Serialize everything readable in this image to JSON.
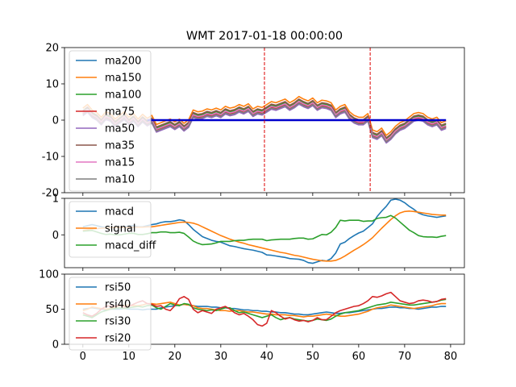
{
  "figure": {
    "title": "WMT 2017-01-18 00:00:00",
    "accent_colors": {
      "blue": "#1f77b4",
      "orange": "#ff7f0e",
      "green": "#2ca02c",
      "red": "#d62728",
      "purple": "#9467bd",
      "brown": "#8c564b",
      "pink": "#e377c2",
      "gray": "#7f7f7f",
      "zero_line": "#0000cc",
      "vline": "#dd0000"
    }
  },
  "chart_data": [
    {
      "id": "ma",
      "type": "line",
      "title": "WMT 2017-01-18 00:00:00",
      "xlim": [
        -4,
        83
      ],
      "ylim": [
        -20,
        20
      ],
      "yticks": [
        -20,
        -10,
        0,
        10,
        20
      ],
      "grid": false,
      "legend_position": "upper-left",
      "hline": {
        "y": 0,
        "x_start": 14,
        "x_end": 79,
        "color": "#0000cc"
      },
      "vlines": [
        39.5,
        62.5
      ],
      "series": [
        {
          "name": "ma200",
          "color": "#1f77b4",
          "offset": -0.3
        },
        {
          "name": "ma150",
          "color": "#ff7f0e",
          "offset": 1.3
        },
        {
          "name": "ma100",
          "color": "#2ca02c",
          "offset": 0.3
        },
        {
          "name": "ma75",
          "color": "#d62728",
          "offset": -0.3
        },
        {
          "name": "ma50",
          "color": "#9467bd",
          "offset": -0.8
        },
        {
          "name": "ma35",
          "color": "#8c564b",
          "offset": 0.6
        },
        {
          "name": "ma15",
          "color": "#e377c2",
          "offset": 0
        },
        {
          "name": "ma10",
          "color": "#7f7f7f",
          "offset": -0.5
        }
      ],
      "x": [
        0,
        1,
        2,
        3,
        4,
        5,
        6,
        7,
        8,
        9,
        10,
        11,
        12,
        13,
        14,
        15,
        16,
        17,
        18,
        19,
        20,
        21,
        22,
        23,
        24,
        25,
        26,
        27,
        28,
        29,
        30,
        31,
        32,
        33,
        34,
        35,
        36,
        37,
        38,
        39,
        40,
        41,
        42,
        43,
        44,
        45,
        46,
        47,
        48,
        49,
        50,
        51,
        52,
        53,
        54,
        55,
        56,
        57,
        58,
        59,
        60,
        61,
        62,
        63,
        64,
        65,
        66,
        67,
        68,
        69,
        70,
        71,
        72,
        73,
        74,
        75,
        76,
        77,
        78,
        79
      ],
      "base": [
        2.0,
        3.0,
        1.5,
        0.8,
        -0.5,
        1.0,
        0.5,
        -1.0,
        0.0,
        1.0,
        -0.5,
        0.5,
        -1.0,
        0.3,
        -0.8,
        0.0,
        -2.5,
        -2.0,
        -1.5,
        -1.0,
        -1.8,
        -1.0,
        -2.2,
        -1.2,
        1.5,
        1.0,
        1.2,
        1.8,
        1.5,
        2.0,
        1.5,
        2.5,
        2.0,
        2.3,
        3.0,
        2.5,
        3.2,
        1.8,
        2.5,
        2.2,
        3.0,
        3.8,
        3.5,
        4.0,
        4.5,
        3.5,
        4.2,
        5.2,
        4.5,
        4.0,
        4.8,
        3.5,
        4.2,
        4.0,
        3.5,
        1.5,
        2.5,
        3.0,
        1.0,
        0.0,
        -0.5,
        -0.5,
        0.5,
        -4.0,
        -4.5,
        -3.5,
        -5.5,
        -4.5,
        -3.0,
        -2.0,
        -1.5,
        -0.5,
        0.5,
        0.8,
        0.5,
        -0.5,
        -1.0,
        -0.5,
        -2.0,
        -1.5
      ]
    },
    {
      "id": "macd",
      "type": "line",
      "xlim": [
        -4,
        83
      ],
      "ylim": [
        -0.9,
        1.0
      ],
      "yticks": [
        0,
        1
      ],
      "grid": false,
      "legend_position": "upper-left",
      "x": [
        0,
        1,
        2,
        3,
        4,
        5,
        6,
        7,
        8,
        9,
        10,
        11,
        12,
        13,
        14,
        15,
        16,
        17,
        18,
        19,
        20,
        21,
        22,
        23,
        24,
        25,
        26,
        27,
        28,
        29,
        30,
        31,
        32,
        33,
        34,
        35,
        36,
        37,
        38,
        39,
        40,
        41,
        42,
        43,
        44,
        45,
        46,
        47,
        48,
        49,
        50,
        51,
        52,
        53,
        54,
        55,
        56,
        57,
        58,
        59,
        60,
        61,
        62,
        63,
        64,
        65,
        66,
        67,
        68,
        69,
        70,
        71,
        72,
        73,
        74,
        75,
        76,
        77,
        78,
        79
      ],
      "series": [
        {
          "name": "macd",
          "color": "#1f77b4",
          "values": [
            0.22,
            0.25,
            0.28,
            0.25,
            0.22,
            0.2,
            0.22,
            0.2,
            0.2,
            0.22,
            0.24,
            0.25,
            0.22,
            0.22,
            0.25,
            0.28,
            0.3,
            0.34,
            0.36,
            0.36,
            0.38,
            0.41,
            0.39,
            0.28,
            0.15,
            0.05,
            -0.05,
            -0.1,
            -0.15,
            -0.18,
            -0.2,
            -0.25,
            -0.3,
            -0.32,
            -0.35,
            -0.38,
            -0.4,
            -0.42,
            -0.45,
            -0.48,
            -0.55,
            -0.56,
            -0.58,
            -0.6,
            -0.62,
            -0.65,
            -0.66,
            -0.67,
            -0.7,
            -0.76,
            -0.78,
            -0.74,
            -0.7,
            -0.72,
            -0.65,
            -0.5,
            -0.25,
            -0.2,
            -0.1,
            -0.02,
            0.05,
            0.1,
            0.2,
            0.3,
            0.5,
            0.65,
            0.78,
            0.95,
            0.98,
            0.95,
            0.88,
            0.78,
            0.7,
            0.6,
            0.55,
            0.52,
            0.5,
            0.48,
            0.5,
            0.52
          ]
        },
        {
          "name": "signal",
          "color": "#ff7f0e",
          "values": [
            0.12,
            0.14,
            0.16,
            0.17,
            0.18,
            0.19,
            0.2,
            0.2,
            0.2,
            0.2,
            0.2,
            0.21,
            0.21,
            0.21,
            0.22,
            0.22,
            0.24,
            0.26,
            0.28,
            0.3,
            0.32,
            0.34,
            0.35,
            0.34,
            0.32,
            0.28,
            0.22,
            0.16,
            0.1,
            0.04,
            -0.02,
            -0.07,
            -0.12,
            -0.16,
            -0.2,
            -0.23,
            -0.27,
            -0.3,
            -0.33,
            -0.36,
            -0.39,
            -0.42,
            -0.45,
            -0.48,
            -0.5,
            -0.53,
            -0.56,
            -0.58,
            -0.61,
            -0.64,
            -0.67,
            -0.69,
            -0.71,
            -0.72,
            -0.72,
            -0.7,
            -0.65,
            -0.58,
            -0.5,
            -0.42,
            -0.35,
            -0.27,
            -0.18,
            -0.08,
            0.05,
            0.18,
            0.3,
            0.42,
            0.52,
            0.6,
            0.64,
            0.65,
            0.64,
            0.62,
            0.6,
            0.58,
            0.56,
            0.55,
            0.54,
            0.54
          ]
        },
        {
          "name": "macd_diff",
          "color": "#2ca02c",
          "values": [
            0.1,
            0.11,
            0.12,
            0.08,
            0.04,
            0.01,
            0.02,
            0.0,
            0.0,
            0.02,
            0.04,
            0.04,
            0.01,
            0.01,
            0.03,
            0.06,
            0.06,
            0.08,
            0.08,
            0.06,
            0.06,
            0.07,
            0.04,
            -0.06,
            -0.17,
            -0.23,
            -0.27,
            -0.26,
            -0.25,
            -0.22,
            -0.18,
            -0.18,
            -0.18,
            -0.16,
            -0.15,
            -0.15,
            -0.13,
            -0.12,
            -0.12,
            -0.12,
            -0.16,
            -0.14,
            -0.13,
            -0.12,
            -0.12,
            -0.12,
            -0.1,
            -0.09,
            -0.09,
            -0.12,
            -0.11,
            -0.05,
            0.01,
            0.0,
            0.07,
            0.2,
            0.4,
            0.38,
            0.4,
            0.4,
            0.4,
            0.37,
            0.38,
            0.38,
            0.45,
            0.47,
            0.48,
            0.53,
            0.46,
            0.35,
            0.24,
            0.13,
            0.06,
            -0.02,
            -0.05,
            -0.06,
            -0.06,
            -0.07,
            -0.04,
            -0.02
          ]
        }
      ]
    },
    {
      "id": "rsi",
      "type": "line",
      "xlim": [
        -4,
        83
      ],
      "ylim": [
        0,
        100
      ],
      "yticks": [
        0,
        50,
        100
      ],
      "xticks": [
        0,
        10,
        20,
        30,
        40,
        50,
        60,
        70,
        80
      ],
      "grid": false,
      "legend_position": "upper-left",
      "x": [
        0,
        1,
        2,
        3,
        4,
        5,
        6,
        7,
        8,
        9,
        10,
        11,
        12,
        13,
        14,
        15,
        16,
        17,
        18,
        19,
        20,
        21,
        22,
        23,
        24,
        25,
        26,
        27,
        28,
        29,
        30,
        31,
        32,
        33,
        34,
        35,
        36,
        37,
        38,
        39,
        40,
        41,
        42,
        43,
        44,
        45,
        46,
        47,
        48,
        49,
        50,
        51,
        52,
        53,
        54,
        55,
        56,
        57,
        58,
        59,
        60,
        61,
        62,
        63,
        64,
        65,
        66,
        67,
        68,
        69,
        70,
        71,
        72,
        73,
        74,
        75,
        76,
        77,
        78,
        79
      ],
      "series": [
        {
          "name": "rsi50",
          "color": "#1f77b4",
          "values": [
            50,
            51,
            52,
            51,
            50,
            49,
            50,
            50,
            50,
            51,
            50,
            50,
            50,
            49,
            50,
            50,
            50,
            52,
            53,
            54,
            55,
            56,
            57,
            56,
            55,
            54,
            54,
            54,
            53,
            53,
            52,
            52,
            51,
            51,
            50,
            49,
            49,
            48,
            48,
            47,
            47,
            46,
            46,
            45,
            45,
            44,
            43,
            43,
            42,
            42,
            43,
            44,
            45,
            46,
            45,
            44,
            44,
            45,
            45,
            46,
            47,
            48,
            49,
            50,
            51,
            51,
            52,
            53,
            53,
            52,
            52,
            51,
            51,
            50,
            51,
            52,
            53,
            53,
            54,
            54
          ]
        },
        {
          "name": "rsi40",
          "color": "#ff7f0e",
          "values": [
            48,
            50,
            53,
            52,
            51,
            50,
            51,
            53,
            55,
            55,
            56,
            55,
            55,
            56,
            58,
            58,
            57,
            58,
            59,
            60,
            58,
            56,
            57,
            56,
            55,
            52,
            51,
            51,
            50,
            49,
            48,
            48,
            47,
            48,
            48,
            47,
            46,
            46,
            45,
            44,
            43,
            43,
            42,
            42,
            42,
            41,
            41,
            40,
            39,
            40,
            40,
            41,
            42,
            43,
            42,
            41,
            40,
            40,
            41,
            42,
            43,
            45,
            47,
            50,
            52,
            53,
            54,
            56,
            55,
            54,
            53,
            52,
            51,
            52,
            53,
            54,
            55,
            57,
            58,
            58
          ]
        },
        {
          "name": "rsi30",
          "color": "#2ca02c",
          "values": [
            42,
            40,
            38,
            42,
            46,
            48,
            50,
            51,
            52,
            51,
            52,
            53,
            54,
            53,
            55,
            56,
            52,
            50,
            54,
            58,
            56,
            55,
            58,
            57,
            52,
            50,
            49,
            48,
            49,
            48,
            50,
            52,
            52,
            48,
            45,
            46,
            44,
            42,
            40,
            38,
            40,
            42,
            38,
            35,
            37,
            38,
            36,
            35,
            34,
            33,
            34,
            36,
            35,
            34,
            36,
            40,
            43,
            45,
            46,
            47,
            48,
            50,
            52,
            54,
            56,
            57,
            58,
            60,
            59,
            58,
            57,
            56,
            56,
            57,
            58,
            59,
            60,
            61,
            63,
            64
          ]
        },
        {
          "name": "rsi20",
          "color": "#d62728",
          "values": [
            45,
            42,
            40,
            44,
            50,
            54,
            55,
            54,
            56,
            53,
            54,
            57,
            60,
            62,
            58,
            57,
            54,
            55,
            50,
            48,
            55,
            65,
            68,
            64,
            50,
            45,
            48,
            46,
            44,
            50,
            52,
            54,
            50,
            45,
            42,
            44,
            40,
            35,
            28,
            26,
            30,
            48,
            45,
            40,
            36,
            38,
            35,
            33,
            34,
            32,
            34,
            38,
            35,
            35,
            40,
            45,
            48,
            50,
            52,
            54,
            55,
            58,
            62,
            68,
            67,
            69,
            72,
            74,
            68,
            62,
            60,
            58,
            59,
            62,
            63,
            62,
            60,
            61,
            64,
            65
          ]
        }
      ]
    }
  ]
}
